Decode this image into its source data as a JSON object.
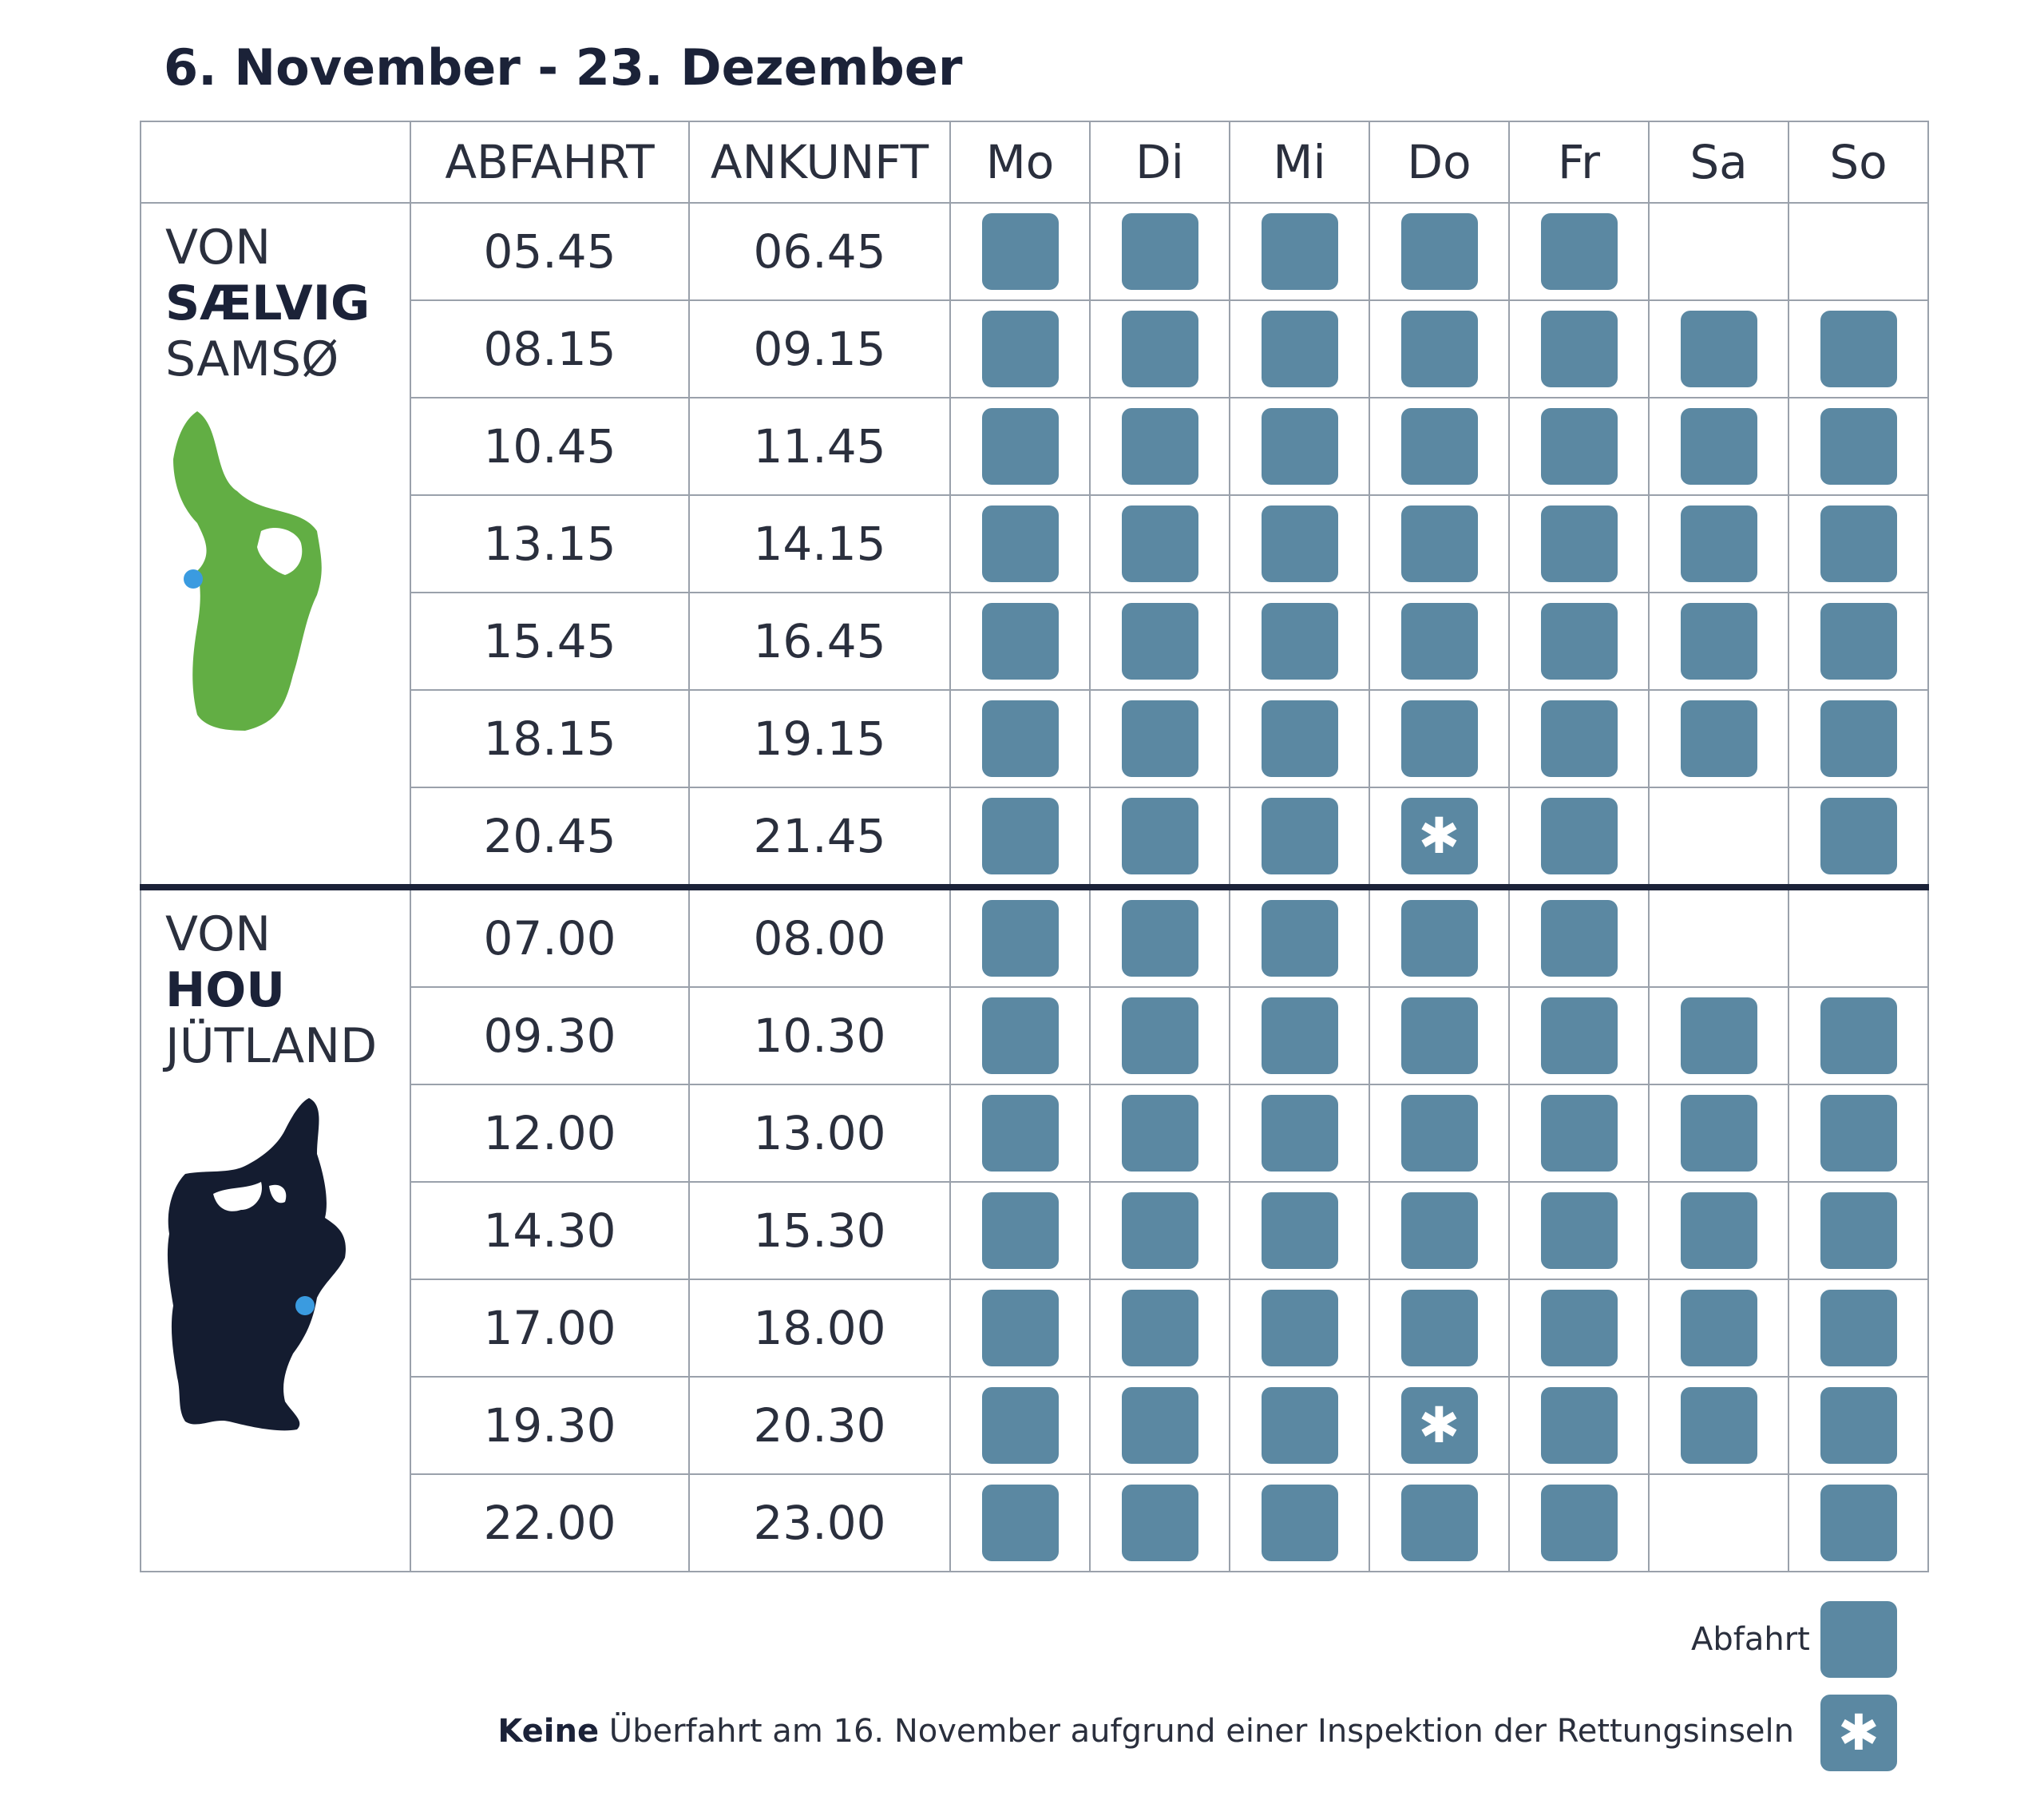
{
  "title": "6. November - 23. Dezember",
  "headers": {
    "depart": "ABFAHRT",
    "arrive": "ANKUNFT",
    "days": [
      "Mo",
      "Di",
      "Mi",
      "Do",
      "Fr",
      "Sa",
      "So"
    ]
  },
  "sections": [
    {
      "label_top": "VON",
      "label_bold": "SÆLVIG",
      "label_bottom": "SAMSØ",
      "map_icon": "samso-island-map",
      "map_color": "#62ae44",
      "rows": [
        {
          "dep": "05.45",
          "arr": "06.45",
          "days": [
            "box",
            "box",
            "box",
            "box",
            "box",
            "",
            ""
          ]
        },
        {
          "dep": "08.15",
          "arr": "09.15",
          "days": [
            "box",
            "box",
            "box",
            "box",
            "box",
            "box",
            "box"
          ]
        },
        {
          "dep": "10.45",
          "arr": "11.45",
          "days": [
            "box",
            "box",
            "box",
            "box",
            "box",
            "box",
            "box"
          ]
        },
        {
          "dep": "13.15",
          "arr": "14.15",
          "days": [
            "box",
            "box",
            "box",
            "box",
            "box",
            "box",
            "box"
          ]
        },
        {
          "dep": "15.45",
          "arr": "16.45",
          "days": [
            "box",
            "box",
            "box",
            "box",
            "box",
            "box",
            "box"
          ]
        },
        {
          "dep": "18.15",
          "arr": "19.15",
          "days": [
            "box",
            "box",
            "box",
            "box",
            "box",
            "box",
            "box"
          ]
        },
        {
          "dep": "20.45",
          "arr": "21.45",
          "days": [
            "box",
            "box",
            "box",
            "star",
            "box",
            "",
            "box"
          ]
        }
      ]
    },
    {
      "label_top": "VON",
      "label_bold": "HOU",
      "label_bottom": "JÜTLAND",
      "map_icon": "jutland-map",
      "map_color": "#141c30",
      "rows": [
        {
          "dep": "07.00",
          "arr": "08.00",
          "days": [
            "box",
            "box",
            "box",
            "box",
            "box",
            "",
            ""
          ]
        },
        {
          "dep": "09.30",
          "arr": "10.30",
          "days": [
            "box",
            "box",
            "box",
            "box",
            "box",
            "box",
            "box"
          ]
        },
        {
          "dep": "12.00",
          "arr": "13.00",
          "days": [
            "box",
            "box",
            "box",
            "box",
            "box",
            "box",
            "box"
          ]
        },
        {
          "dep": "14.30",
          "arr": "15.30",
          "days": [
            "box",
            "box",
            "box",
            "box",
            "box",
            "box",
            "box"
          ]
        },
        {
          "dep": "17.00",
          "arr": "18.00",
          "days": [
            "box",
            "box",
            "box",
            "box",
            "box",
            "box",
            "box"
          ]
        },
        {
          "dep": "19.30",
          "arr": "20.30",
          "days": [
            "box",
            "box",
            "box",
            "star",
            "box",
            "box",
            "box"
          ]
        },
        {
          "dep": "22.00",
          "arr": "23.00",
          "days": [
            "box",
            "box",
            "box",
            "box",
            "box",
            "",
            "box"
          ]
        }
      ]
    }
  ],
  "legend": {
    "departure_label": "Abfahrt",
    "note_bold": "Keine",
    "note_text": " Überfahrt am 16. November aufgrund einer Inspektion der Rettungsinseln"
  },
  "colors": {
    "box": "#5b88a2",
    "heading": "#1b2238",
    "marker": "#3a9be0"
  }
}
